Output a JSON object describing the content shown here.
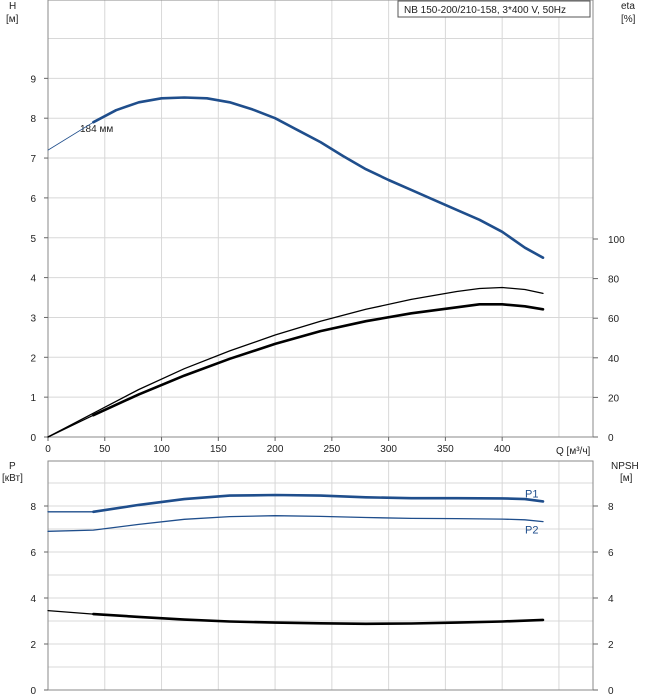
{
  "chart_data": [
    {
      "type": "line",
      "title": "NB 150-200/210-158, 3*400 V, 50Hz",
      "left_axis": {
        "label": "H",
        "unit": "[м]",
        "ylim": [
          0,
          10
        ],
        "ticks": [
          "0",
          "1",
          "2",
          "3",
          "4",
          "5",
          "6",
          "7",
          "8",
          "9"
        ]
      },
      "right_axis": {
        "label": "eta",
        "unit": "[%]",
        "ylim": [
          0,
          200
        ],
        "ticks": [
          "0",
          "20",
          "40",
          "60",
          "80",
          "100"
        ]
      },
      "x_axis": {
        "label": "Q [м³/ч]",
        "xlim": [
          0,
          480
        ],
        "ticks": [
          "0",
          "50",
          "100",
          "150",
          "200",
          "250",
          "300",
          "350",
          "400"
        ]
      },
      "annotation": "184 мм",
      "grid": true,
      "series": [
        {
          "name": "",
          "axis": "left",
          "color": "#1f4e8c",
          "style": "thin-extension",
          "points": [
            [
              0,
              7.2
            ],
            [
              40,
              7.9
            ]
          ]
        },
        {
          "name": "",
          "axis": "left",
          "color": "#1f4e8c",
          "style": "main",
          "points": [
            [
              40,
              7.9
            ],
            [
              60,
              8.2
            ],
            [
              80,
              8.4
            ],
            [
              100,
              8.5
            ],
            [
              120,
              8.52
            ],
            [
              140,
              8.5
            ],
            [
              160,
              8.4
            ],
            [
              180,
              8.22
            ],
            [
              200,
              8.0
            ],
            [
              220,
              7.7
            ],
            [
              240,
              7.4
            ],
            [
              260,
              7.05
            ],
            [
              280,
              6.72
            ],
            [
              300,
              6.45
            ],
            [
              320,
              6.2
            ],
            [
              340,
              5.95
            ],
            [
              360,
              5.7
            ],
            [
              380,
              5.45
            ],
            [
              400,
              5.15
            ],
            [
              420,
              4.75
            ],
            [
              436,
              4.5
            ]
          ]
        },
        {
          "name": "",
          "axis": "right",
          "color": "#000000",
          "style": "thin",
          "points": [
            [
              0,
              0
            ],
            [
              40,
              12
            ],
            [
              80,
              24
            ],
            [
              120,
              34.5
            ],
            [
              160,
              43.5
            ],
            [
              200,
              51.5
            ],
            [
              240,
              58.5
            ],
            [
              280,
              64.5
            ],
            [
              320,
              69.5
            ],
            [
              360,
              73.5
            ],
            [
              380,
              75
            ],
            [
              400,
              75.5
            ],
            [
              420,
              74.5
            ],
            [
              436,
              72.5
            ]
          ]
        },
        {
          "name": "",
          "axis": "right",
          "color": "#000000",
          "style": "thin",
          "points": [
            [
              0,
              0
            ],
            [
              40,
              11
            ]
          ]
        },
        {
          "name": "",
          "axis": "right",
          "color": "#000000",
          "style": "main",
          "points": [
            [
              40,
              11
            ],
            [
              80,
              21.5
            ],
            [
              120,
              31
            ],
            [
              160,
              39.5
            ],
            [
              200,
              47
            ],
            [
              240,
              53.5
            ],
            [
              280,
              58.5
            ],
            [
              320,
              62.5
            ],
            [
              360,
              65.5
            ],
            [
              380,
              67
            ],
            [
              400,
              67
            ],
            [
              420,
              66
            ],
            [
              436,
              64.5
            ]
          ]
        }
      ]
    },
    {
      "type": "line",
      "left_axis": {
        "label": "P",
        "unit": "[кВт]",
        "ylim": [
          0,
          10
        ],
        "ticks": [
          "0",
          "2",
          "4",
          "6",
          "8"
        ]
      },
      "right_axis": {
        "label": "NPSH",
        "unit": "[м]",
        "ylim": [
          0,
          10
        ],
        "ticks": [
          "0",
          "2",
          "4",
          "6",
          "8"
        ]
      },
      "x_axis": {
        "xlim": [
          0,
          480
        ]
      },
      "grid": true,
      "series": [
        {
          "name": "P1",
          "axis": "left",
          "color": "#1f4e8c",
          "style": "main",
          "points": [
            [
              40,
              7.75
            ],
            [
              80,
              8.05
            ],
            [
              120,
              8.3
            ],
            [
              160,
              8.45
            ],
            [
              200,
              8.48
            ],
            [
              240,
              8.45
            ],
            [
              280,
              8.38
            ],
            [
              320,
              8.34
            ],
            [
              360,
              8.34
            ],
            [
              400,
              8.33
            ],
            [
              420,
              8.3
            ],
            [
              436,
              8.2
            ]
          ]
        },
        {
          "name": "",
          "axis": "left",
          "color": "#1f4e8c",
          "style": "thin",
          "points": [
            [
              0,
              7.75
            ],
            [
              40,
              7.75
            ]
          ]
        },
        {
          "name": "P2",
          "axis": "left",
          "color": "#1f4e8c",
          "style": "thin",
          "points": [
            [
              0,
              6.9
            ],
            [
              40,
              6.95
            ],
            [
              80,
              7.2
            ],
            [
              120,
              7.42
            ],
            [
              160,
              7.54
            ],
            [
              200,
              7.58
            ],
            [
              240,
              7.55
            ],
            [
              280,
              7.5
            ],
            [
              320,
              7.46
            ],
            [
              360,
              7.45
            ],
            [
              400,
              7.43
            ],
            [
              420,
              7.4
            ],
            [
              436,
              7.32
            ]
          ]
        },
        {
          "name": "",
          "axis": "right",
          "color": "#000000",
          "style": "thin",
          "points": [
            [
              0,
              3.45
            ],
            [
              40,
              3.3
            ]
          ]
        },
        {
          "name": "",
          "axis": "right",
          "color": "#000000",
          "style": "main",
          "points": [
            [
              40,
              3.3
            ],
            [
              80,
              3.18
            ],
            [
              120,
              3.06
            ],
            [
              160,
              2.98
            ],
            [
              200,
              2.93
            ],
            [
              240,
              2.9
            ],
            [
              280,
              2.88
            ],
            [
              320,
              2.89
            ],
            [
              360,
              2.93
            ],
            [
              400,
              2.98
            ],
            [
              436,
              3.05
            ]
          ]
        }
      ]
    }
  ]
}
